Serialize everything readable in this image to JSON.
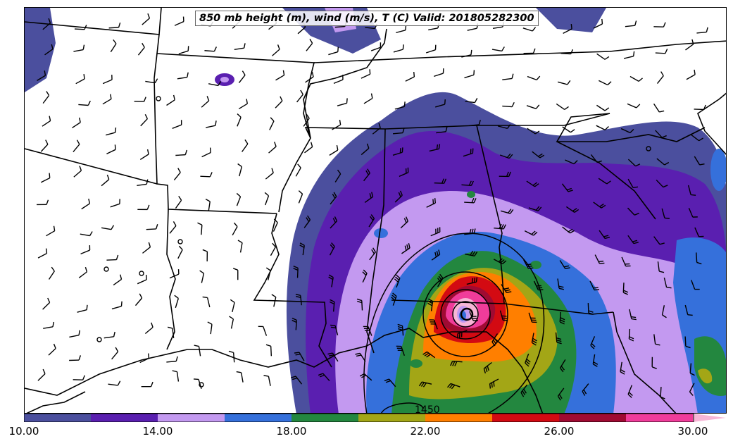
{
  "title": "850 mb height (m), wind (m/s), T (C) Valid: 201805282300",
  "colorbar": {
    "colors": [
      "#4b4f9e",
      "#5a1fb0",
      "#c399f0",
      "#3570db",
      "#23873f",
      "#a3a616",
      "#ff7f00",
      "#d30a12",
      "#a00a32",
      "#f03c9a",
      "#f7b6d6"
    ],
    "tick_labels": [
      "10.00",
      "14.00",
      "18.00",
      "22.00",
      "26.00",
      "30.00"
    ]
  },
  "height_contour_label": "1450"
}
